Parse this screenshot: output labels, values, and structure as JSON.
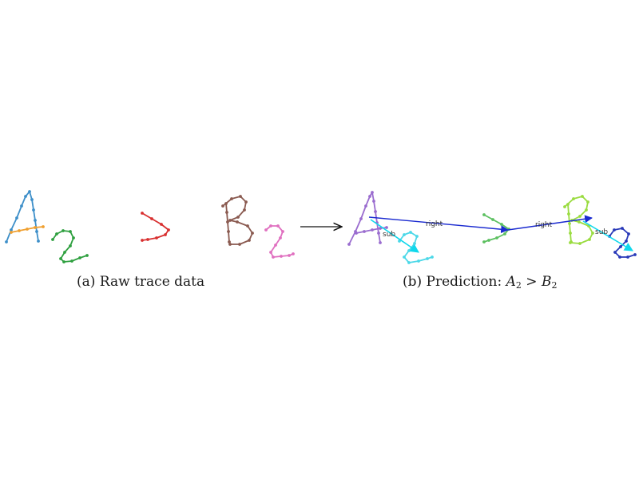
{
  "captions": {
    "raw": "(a) Raw trace data",
    "prediction_prefix": "(b) Prediction: ",
    "prediction_lhs": "A",
    "prediction_lhs_sub": "2",
    "prediction_op": " > ",
    "prediction_rhs": "B",
    "prediction_rhs_sub": "2"
  },
  "edges": {
    "sub_1": "sub",
    "right_1": "right",
    "right_2": "right",
    "sub_2": "sub"
  },
  "colors": {
    "a_stroke": "#3d8fc9",
    "a_crossbar": "#f0a030",
    "two_1": "#2fa040",
    "greater": "#d83030",
    "b_stroke": "#8a5a50",
    "two_2": "#e070c0",
    "arrow": "#111111",
    "pred_a": "#9a6ccf",
    "pred_two_1": "#4cd8e8",
    "pred_greater": "#5cc060",
    "pred_b": "#9adc40",
    "pred_two_2": "#2838b8",
    "edge_right": "#1a2ad0",
    "edge_sub": "#10d8ec"
  }
}
